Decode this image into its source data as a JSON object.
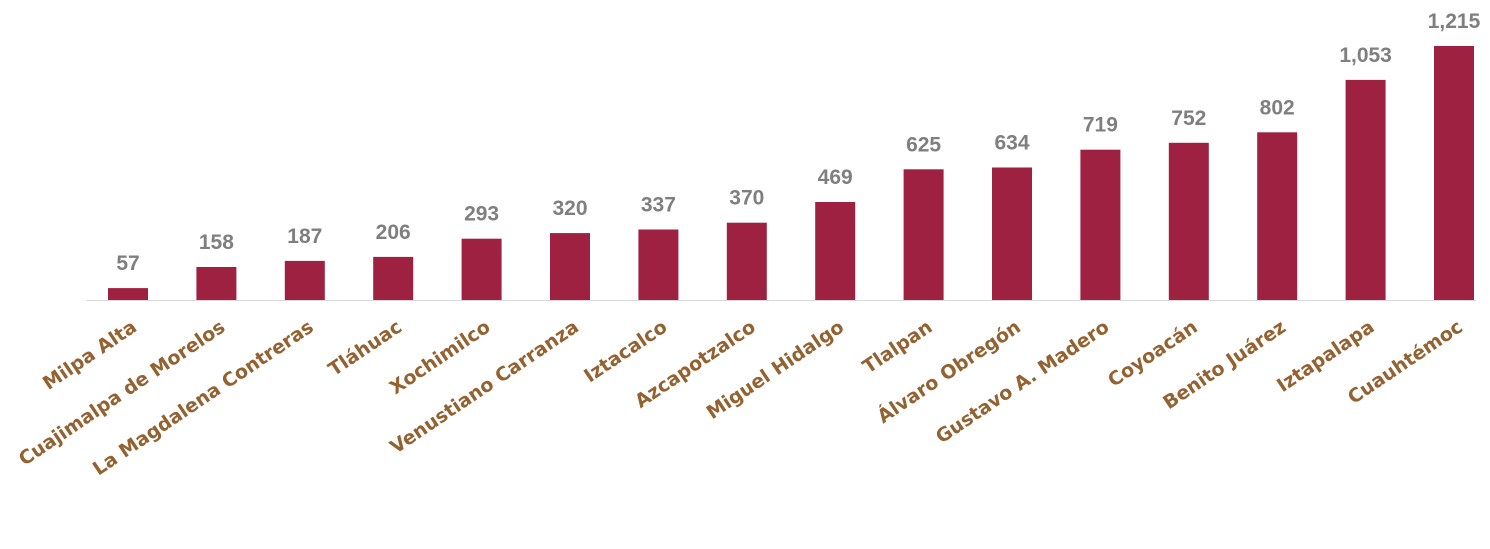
{
  "chart_data": {
    "type": "bar",
    "categories": [
      "Milpa Alta",
      "Cuajimalpa de Morelos",
      "La Magdalena Contreras",
      "Tláhuac",
      "Xochimilco",
      "Venustiano Carranza",
      "Iztacalco",
      "Azcapotzalco",
      "Miguel Hidalgo",
      "Tlalpan",
      "Álvaro Obregón",
      "Gustavo A. Madero",
      "Coyoacán",
      "Benito Juárez",
      "Iztapalapa",
      "Cuauhtémoc"
    ],
    "values": [
      57,
      158,
      187,
      206,
      293,
      320,
      337,
      370,
      469,
      625,
      634,
      719,
      752,
      802,
      1053,
      1215
    ],
    "value_labels": [
      "57",
      "158",
      "187",
      "206",
      "293",
      "320",
      "337",
      "370",
      "469",
      "625",
      "634",
      "719",
      "752",
      "802",
      "1,053",
      "1,215"
    ],
    "title": "",
    "xlabel": "",
    "ylabel": "",
    "ylim": [
      0,
      1215
    ],
    "grid": false,
    "legend": "none",
    "colors": {
      "bar": "#9E2141",
      "value_label": "#7F7F7F",
      "category_label": "#946231",
      "axis": "#D9D9D9"
    }
  }
}
